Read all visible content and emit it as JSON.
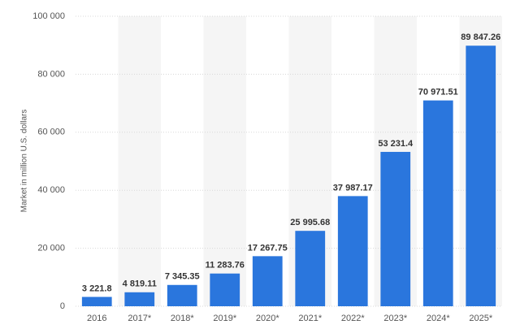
{
  "chart_data": {
    "type": "bar",
    "y_label": "Market in million U.S. dollars",
    "categories": [
      "2016",
      "2017*",
      "2018*",
      "2019*",
      "2020*",
      "2021*",
      "2022*",
      "2023*",
      "2024*",
      "2025*"
    ],
    "values": [
      3221.8,
      4819.11,
      7345.35,
      11283.76,
      17267.75,
      25995.68,
      37987.17,
      53231.4,
      70971.51,
      89847.26
    ],
    "value_labels": [
      "3 221.8",
      "4 819.11",
      "7 345.35",
      "11 283.76",
      "17 267.75",
      "25 995.68",
      "37 987.17",
      "53 231.4",
      "70 971.51",
      "89 847.26"
    ],
    "color": "#2a76dd",
    "ylim": [
      0,
      100000
    ],
    "yticks": [
      0,
      {
        "value": 20000,
        "label": "20 000"
      },
      {
        "value": 40000,
        "label": "40 000"
      },
      {
        "value": 60000,
        "label": "60 000"
      },
      {
        "value": 80000,
        "label": "80 000"
      },
      {
        "value": 100000,
        "label": "100 000"
      }
    ],
    "grid": true
  }
}
